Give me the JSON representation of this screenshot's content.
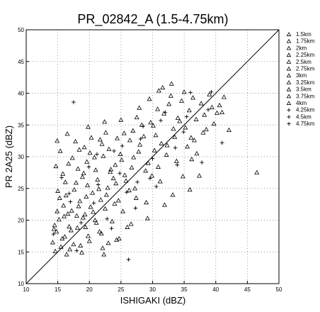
{
  "chart_data": {
    "type": "scatter",
    "title": "PR_02842_A (1.5-4.75km)",
    "xlabel": "ISHIGAKI (dBZ)",
    "ylabel": "PR 2A25 (dBZ)",
    "xlim": [
      10,
      50
    ],
    "ylim": [
      10,
      50
    ],
    "xticks": [
      "10",
      "15",
      "20",
      "25",
      "30",
      "35",
      "40",
      "45",
      "50"
    ],
    "yticks": [
      "10",
      "15",
      "20",
      "25",
      "30",
      "35",
      "40",
      "45",
      "50"
    ],
    "grid": "dotted",
    "reference_line": "1:1 diagonal",
    "legend_position": "right",
    "series": [
      {
        "name": "1.5km",
        "marker": "triangle",
        "points": [
          [
            14.2,
            16.5
          ],
          [
            14.8,
            18.2
          ],
          [
            15.5,
            15.8
          ],
          [
            16.1,
            17.4
          ],
          [
            15.2,
            20.1
          ],
          [
            16.8,
            19.0
          ],
          [
            17.5,
            16.2
          ],
          [
            18.1,
            18.8
          ],
          [
            15.9,
            22.3
          ],
          [
            17.2,
            21.5
          ],
          [
            19.0,
            20.4
          ],
          [
            18.5,
            23.0
          ],
          [
            20.2,
            22.1
          ],
          [
            21.1,
            19.6
          ],
          [
            22.5,
            21.8
          ],
          [
            16.4,
            14.6
          ],
          [
            19.8,
            17.5
          ]
        ]
      },
      {
        "name": "1.75km",
        "marker": "triangle",
        "points": [
          [
            14.5,
            19.2
          ],
          [
            15.7,
            17.1
          ],
          [
            16.9,
            15.4
          ],
          [
            18.0,
            20.7
          ],
          [
            19.4,
            18.9
          ],
          [
            20.5,
            24.3
          ],
          [
            21.8,
            23.2
          ],
          [
            17.6,
            24.8
          ],
          [
            15.3,
            23.5
          ],
          [
            22.9,
            25.1
          ],
          [
            24.0,
            22.6
          ],
          [
            18.8,
            14.9
          ],
          [
            14.9,
            21.4
          ],
          [
            20.9,
            20.0
          ],
          [
            23.6,
            19.8
          ],
          [
            16.2,
            26.0
          ]
        ]
      },
      {
        "name": "2km",
        "marker": "triangle",
        "points": [
          [
            15.0,
            24.6
          ],
          [
            16.6,
            21.0
          ],
          [
            18.3,
            22.2
          ],
          [
            19.7,
            25.5
          ],
          [
            21.3,
            26.4
          ],
          [
            22.7,
            24.0
          ],
          [
            24.2,
            25.8
          ],
          [
            25.6,
            27.1
          ],
          [
            17.1,
            18.4
          ],
          [
            20.0,
            16.7
          ],
          [
            23.4,
            28.0
          ],
          [
            14.6,
            15.1
          ],
          [
            19.1,
            27.4
          ],
          [
            26.3,
            24.7
          ],
          [
            21.9,
            17.9
          ]
        ]
      },
      {
        "name": "2.25km",
        "marker": "triangle",
        "points": [
          [
            15.8,
            27.3
          ],
          [
            17.9,
            25.9
          ],
          [
            19.6,
            29.2
          ],
          [
            21.0,
            27.9
          ],
          [
            22.2,
            30.1
          ],
          [
            23.8,
            26.6
          ],
          [
            25.1,
            29.5
          ],
          [
            26.7,
            28.3
          ],
          [
            18.6,
            16.0
          ],
          [
            16.3,
            23.9
          ],
          [
            20.6,
            21.3
          ],
          [
            24.6,
            23.1
          ],
          [
            27.8,
            30.8
          ],
          [
            14.4,
            18.6
          ],
          [
            22.0,
            32.0
          ]
        ]
      },
      {
        "name": "2.5km",
        "marker": "triangle",
        "points": [
          [
            14.7,
            28.5
          ],
          [
            17.3,
            29.8
          ],
          [
            19.2,
            31.5
          ],
          [
            20.8,
            29.9
          ],
          [
            23.1,
            31.2
          ],
          [
            24.9,
            30.4
          ],
          [
            26.4,
            32.6
          ],
          [
            28.0,
            31.9
          ],
          [
            29.3,
            29.0
          ],
          [
            21.5,
            24.9
          ],
          [
            18.9,
            26.8
          ],
          [
            16.0,
            20.6
          ],
          [
            25.8,
            26.2
          ],
          [
            27.2,
            25.0
          ],
          [
            30.5,
            33.4
          ]
        ]
      },
      {
        "name": "2.75km",
        "marker": "triangle",
        "points": [
          [
            15.4,
            30.9
          ],
          [
            17.8,
            32.4
          ],
          [
            20.3,
            33.0
          ],
          [
            22.6,
            33.8
          ],
          [
            24.4,
            32.9
          ],
          [
            26.9,
            34.1
          ],
          [
            28.6,
            33.2
          ],
          [
            30.1,
            34.9
          ],
          [
            31.4,
            32.1
          ],
          [
            19.5,
            23.7
          ],
          [
            23.3,
            27.6
          ],
          [
            16.7,
            28.9
          ],
          [
            25.3,
            21.4
          ],
          [
            28.9,
            27.8
          ],
          [
            32.2,
            30.3
          ]
        ]
      },
      {
        "name": "3km",
        "marker": "triangle",
        "points": [
          [
            16.5,
            33.6
          ],
          [
            19.8,
            34.7
          ],
          [
            22.4,
            35.5
          ],
          [
            25.0,
            35.8
          ],
          [
            27.5,
            36.2
          ],
          [
            29.7,
            35.4
          ],
          [
            31.8,
            36.8
          ],
          [
            33.3,
            34.4
          ],
          [
            20.1,
            30.6
          ],
          [
            24.1,
            28.7
          ],
          [
            27.0,
            29.9
          ],
          [
            29.0,
            22.8
          ],
          [
            21.6,
            18.2
          ],
          [
            18.2,
            28.1
          ],
          [
            30.9,
            28.4
          ]
        ]
      },
      {
        "name": "3.25km",
        "marker": "triangle",
        "points": [
          [
            14.9,
            32.5
          ],
          [
            18.4,
            31.1
          ],
          [
            21.7,
            32.7
          ],
          [
            25.5,
            33.7
          ],
          [
            28.3,
            35.0
          ],
          [
            30.8,
            37.5
          ],
          [
            32.6,
            38.3
          ],
          [
            34.0,
            36.1
          ],
          [
            35.2,
            34.6
          ],
          [
            26.0,
            18.9
          ],
          [
            23.0,
            16.4
          ],
          [
            19.3,
            20.9
          ],
          [
            31.2,
            26.1
          ],
          [
            33.8,
            29.3
          ],
          [
            36.1,
            33.0
          ]
        ]
      },
      {
        "name": "3.5km",
        "marker": "triangle",
        "points": [
          [
            29.5,
            39.1
          ],
          [
            31.0,
            40.4
          ],
          [
            32.9,
            39.6
          ],
          [
            34.6,
            38.8
          ],
          [
            35.8,
            37.3
          ],
          [
            36.9,
            35.9
          ],
          [
            38.2,
            36.6
          ],
          [
            39.4,
            37.8
          ],
          [
            27.9,
            37.7
          ],
          [
            30.3,
            31.0
          ],
          [
            33.5,
            33.1
          ],
          [
            35.5,
            31.6
          ],
          [
            37.0,
            30.5
          ],
          [
            24.7,
            17.1
          ],
          [
            22.1,
            15.6
          ]
        ]
      },
      {
        "name": "3.75km",
        "marker": "triangle",
        "points": [
          [
            31.6,
            40.9
          ],
          [
            33.0,
            41.5
          ],
          [
            35.0,
            40.2
          ],
          [
            36.4,
            39.3
          ],
          [
            37.7,
            38.4
          ],
          [
            39.0,
            39.8
          ],
          [
            40.2,
            36.9
          ],
          [
            41.3,
            39.4
          ],
          [
            38.5,
            34.3
          ],
          [
            36.6,
            32.6
          ],
          [
            34.3,
            35.6
          ],
          [
            32.3,
            31.8
          ],
          [
            35.9,
            24.8
          ],
          [
            29.9,
            27.0
          ],
          [
            27.4,
            23.5
          ]
        ]
      },
      {
        "name": "4km",
        "marker": "triangle",
        "points": [
          [
            40.6,
            38.1
          ],
          [
            41.0,
            37.0
          ],
          [
            39.7,
            35.2
          ],
          [
            38.0,
            33.8
          ],
          [
            36.2,
            29.6
          ],
          [
            34.8,
            26.9
          ],
          [
            33.2,
            24.0
          ],
          [
            31.9,
            22.4
          ],
          [
            29.2,
            20.3
          ],
          [
            26.6,
            19.4
          ],
          [
            24.3,
            16.9
          ],
          [
            22.3,
            14.6
          ],
          [
            46.5,
            27.5
          ],
          [
            42.1,
            34.2
          ],
          [
            37.4,
            27.0
          ]
        ]
      },
      {
        "name": "4.25km",
        "marker": "plus",
        "points": [
          [
            17.5,
            38.6
          ],
          [
            24.8,
            27.4
          ],
          [
            27.6,
            26.0
          ],
          [
            30.0,
            29.7
          ],
          [
            33.6,
            31.4
          ],
          [
            36.0,
            40.1
          ],
          [
            38.8,
            37.4
          ],
          [
            41.0,
            32.2
          ],
          [
            26.2,
            13.8
          ],
          [
            21.2,
            30.4
          ],
          [
            18.7,
            19.6
          ],
          [
            16.8,
            24.2
          ]
        ]
      },
      {
        "name": "4.5km",
        "marker": "plus",
        "points": [
          [
            15.6,
            26.7
          ],
          [
            19.9,
            28.4
          ],
          [
            23.9,
            30.9
          ],
          [
            28.1,
            32.8
          ],
          [
            31.3,
            35.7
          ],
          [
            35.4,
            36.3
          ],
          [
            39.3,
            40.2
          ],
          [
            22.8,
            20.2
          ],
          [
            20.7,
            22.7
          ],
          [
            25.9,
            24.4
          ],
          [
            29.6,
            26.6
          ],
          [
            33.9,
            28.7
          ]
        ]
      },
      {
        "name": "4.75km",
        "marker": "plus",
        "points": [
          [
            14.3,
            17.8
          ],
          [
            17.0,
            22.9
          ],
          [
            21.4,
            25.6
          ],
          [
            25.2,
            31.7
          ],
          [
            28.5,
            34.8
          ],
          [
            32.0,
            37.0
          ],
          [
            34.9,
            33.9
          ],
          [
            18.0,
            15.2
          ],
          [
            23.5,
            18.7
          ],
          [
            27.3,
            21.9
          ],
          [
            30.6,
            25.3
          ],
          [
            37.8,
            29.1
          ]
        ]
      }
    ]
  }
}
